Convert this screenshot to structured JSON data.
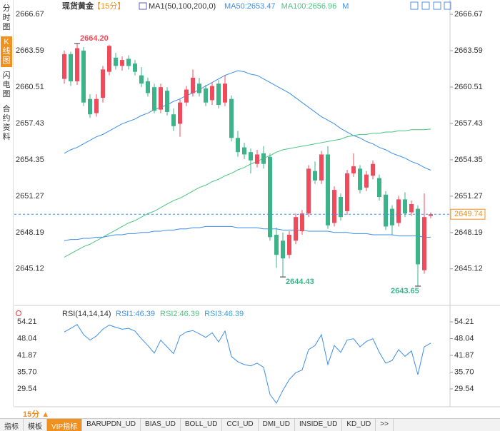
{
  "sidebar": {
    "tabs": [
      "分时图",
      "K线图",
      "闪电图",
      "合约资料"
    ],
    "active": 1
  },
  "chart_data": [
    {
      "type": "candlestick",
      "title": "现货黄金",
      "period": "【15分】",
      "indicator": "MA1(50,100,200,0)",
      "up_color": "#f04b5c",
      "down_color": "#3db389",
      "open": [
        2661.2,
        2663.3,
        2661.0,
        2663.6,
        2659.5,
        2658.3,
        2659.6,
        2661.8,
        2663.0,
        2662.3,
        2662.9,
        2662.5,
        2661.5,
        2661.0,
        2660.5,
        2658.6,
        2660.2,
        2658.2,
        2657.4,
        2659.2,
        2660.0,
        2660.8,
        2660.4,
        2659.4,
        2660.8,
        2659.2,
        2659.5,
        2656.2,
        2655.4,
        2655.0,
        2654.0,
        2654.9,
        2654.6,
        2648.0,
        2647.5,
        2646.3,
        2647.5,
        2648.3,
        2649.8,
        2653.4,
        2652.6,
        2654.8,
        2649.0,
        2651.2,
        2650.0,
        2653.2,
        2653.6,
        2652.0,
        2653.0,
        2652.8,
        2651.4,
        2650.2,
        2649.0,
        2651.0,
        2649.9,
        2650.2,
        2645.0,
        2649.6
      ],
      "high": [
        2663.6,
        2663.5,
        2664.2,
        2663.9,
        2659.9,
        2659.9,
        2662.3,
        2664.1,
        2663.4,
        2663.1,
        2663.2,
        2662.8,
        2662.2,
        2661.3,
        2660.8,
        2660.8,
        2660.5,
        2658.7,
        2659.5,
        2660.6,
        2662.0,
        2661.3,
        2660.7,
        2660.9,
        2661.1,
        2661.5,
        2659.8,
        2656.8,
        2655.8,
        2655.3,
        2655.2,
        2655.5,
        2654.9,
        2648.6,
        2648.2,
        2648.3,
        2649.8,
        2650.1,
        2653.9,
        2654.2,
        2655.1,
        2655.5,
        2652.1,
        2651.5,
        2653.5,
        2654.9,
        2653.9,
        2653.4,
        2654.3,
        2653.1,
        2651.7,
        2650.5,
        2651.3,
        2651.6,
        2650.9,
        2650.5,
        2651.5,
        2649.9
      ],
      "low": [
        2660.8,
        2660.6,
        2660.7,
        2658.9,
        2657.9,
        2658.0,
        2659.2,
        2661.5,
        2662.0,
        2661.9,
        2662.0,
        2661.5,
        2660.5,
        2659.7,
        2658.3,
        2658.3,
        2658.1,
        2656.8,
        2656.3,
        2658.9,
        2659.7,
        2659.7,
        2658.9,
        2659.0,
        2658.7,
        2658.9,
        2655.9,
        2654.6,
        2654.4,
        2653.2,
        2653.7,
        2653.6,
        2647.5,
        2645.2,
        2644.43,
        2646.0,
        2647.2,
        2648.0,
        2649.5,
        2652.3,
        2652.3,
        2648.5,
        2648.7,
        2649.2,
        2649.7,
        2652.9,
        2651.5,
        2651.7,
        2652.7,
        2650.9,
        2648.4,
        2648.0,
        2648.7,
        2649.5,
        2649.6,
        2643.65,
        2644.7,
        2649.4
      ],
      "close": [
        2663.3,
        2661.0,
        2663.8,
        2659.2,
        2658.2,
        2659.5,
        2662.0,
        2664.0,
        2662.3,
        2662.8,
        2662.3,
        2661.8,
        2660.8,
        2660.0,
        2658.5,
        2660.5,
        2658.4,
        2657.2,
        2659.2,
        2660.3,
        2661.3,
        2660.0,
        2659.2,
        2660.6,
        2659.0,
        2660.8,
        2656.2,
        2655.0,
        2654.8,
        2654.3,
        2654.8,
        2654.0,
        2647.8,
        2646.3,
        2646.0,
        2648.0,
        2649.5,
        2649.8,
        2653.6,
        2652.6,
        2654.8,
        2648.8,
        2651.8,
        2649.5,
        2653.2,
        2653.8,
        2651.8,
        2653.1,
        2654.0,
        2651.2,
        2648.7,
        2648.8,
        2651.0,
        2649.8,
        2650.6,
        2645.5,
        2649.5,
        2649.74
      ],
      "series": [
        {
          "name": "MA50:2653.47",
          "color": "#3d8fe6",
          "values": [
            2654.9,
            2655.2,
            2655.4,
            2655.7,
            2656.0,
            2656.3,
            2656.5,
            2656.8,
            2657.1,
            2657.4,
            2657.6,
            2657.8,
            2658.1,
            2658.3,
            2658.6,
            2658.8,
            2659.0,
            2659.3,
            2659.5,
            2659.8,
            2660.0,
            2660.3,
            2660.6,
            2660.9,
            2661.2,
            2661.5,
            2661.7,
            2661.9,
            2661.8,
            2661.6,
            2661.5,
            2661.2,
            2660.9,
            2660.6,
            2660.3,
            2660.0,
            2659.6,
            2659.2,
            2658.8,
            2658.4,
            2658.0,
            2657.7,
            2657.4,
            2657.0,
            2656.7,
            2656.4,
            2656.2,
            2655.9,
            2655.7,
            2655.4,
            2655.2,
            2654.9,
            2654.7,
            2654.5,
            2654.2,
            2654.0,
            2653.7,
            2653.47
          ]
        },
        {
          "name": "MA100:2656.96",
          "color": "#4cc47f",
          "values": [
            2646.1,
            2646.4,
            2646.7,
            2647.0,
            2647.2,
            2647.5,
            2647.8,
            2648.1,
            2648.4,
            2648.7,
            2649.0,
            2649.2,
            2649.5,
            2649.8,
            2650.0,
            2650.3,
            2650.6,
            2650.9,
            2651.1,
            2651.4,
            2651.7,
            2652.0,
            2652.2,
            2652.5,
            2652.7,
            2653.0,
            2653.2,
            2653.5,
            2653.7,
            2654.0,
            2654.2,
            2654.5,
            2654.7,
            2655.0,
            2655.2,
            2655.3,
            2655.4,
            2655.5,
            2655.6,
            2655.7,
            2655.8,
            2655.9,
            2656.0,
            2656.1,
            2656.3,
            2656.4,
            2656.5,
            2656.5,
            2656.6,
            2656.6,
            2656.7,
            2656.7,
            2656.8,
            2656.8,
            2656.9,
            2656.9,
            2656.9,
            2656.96
          ]
        },
        {
          "name": "M",
          "color": "#3d8fe6",
          "values": [
            2647.5,
            2647.6,
            2647.6,
            2647.7,
            2647.7,
            2647.8,
            2647.8,
            2647.9,
            2648.0,
            2648.0,
            2648.1,
            2648.1,
            2648.2,
            2648.2,
            2648.3,
            2648.3,
            2648.4,
            2648.4,
            2648.5,
            2648.5,
            2648.6,
            2648.6,
            2648.7,
            2648.7,
            2648.7,
            2648.7,
            2648.7,
            2648.6,
            2648.6,
            2648.6,
            2648.6,
            2648.5,
            2648.5,
            2648.5,
            2648.4,
            2648.4,
            2648.4,
            2648.4,
            2648.3,
            2648.3,
            2648.3,
            2648.3,
            2648.2,
            2648.2,
            2648.2,
            2648.1,
            2648.1,
            2648.1,
            2648.0,
            2648.0,
            2648.0,
            2648.0,
            2647.9,
            2647.9,
            2647.9,
            2647.9,
            2647.8,
            2647.8
          ]
        }
      ],
      "ylim": [
        2642.2,
        2667.58
      ],
      "yticks": [
        2666.67,
        2663.59,
        2660.51,
        2657.43,
        2654.35,
        2651.27,
        2648.19,
        2645.12
      ],
      "last_price": 2649.74,
      "last_color": "#f0901e",
      "annotations": [
        {
          "kind": "high",
          "value": 2664.2,
          "label": "2664.20"
        },
        {
          "kind": "low",
          "value": 2644.43,
          "label": "2644.43"
        },
        {
          "kind": "low",
          "value": 2643.65,
          "label": "2643.65"
        }
      ]
    },
    {
      "type": "line",
      "title": "RSI(14,14,14)",
      "legend": [
        {
          "name": "RSI1:46.39",
          "color": "#3d8fe6"
        },
        {
          "name": "RSI2:46.39",
          "color": "#4cc47f"
        },
        {
          "name": "RSI3:46.39",
          "color": "#36a3d9"
        }
      ],
      "values": [
        50.5,
        51.8,
        53.2,
        49.5,
        47.5,
        49.0,
        51.5,
        53.0,
        52.2,
        51.5,
        51.8,
        50.8,
        48.0,
        45.5,
        42.7,
        47.5,
        45.0,
        42.5,
        49.0,
        50.5,
        51.0,
        49.8,
        48.5,
        50.2,
        46.8,
        50.8,
        41.5,
        39.5,
        38.5,
        38.0,
        39.0,
        37.5,
        27.5,
        24.3,
        29.0,
        33.0,
        35.5,
        36.5,
        44.0,
        45.5,
        49.5,
        38.5,
        45.5,
        43.0,
        47.5,
        48.0,
        45.0,
        47.0,
        48.0,
        43.0,
        39.0,
        40.0,
        44.0,
        41.5,
        43.5,
        34.8,
        45.0,
        46.39
      ],
      "color": "#3d8fe6",
      "ylim": [
        22.98,
        56.31
      ],
      "yticks": [
        54.21,
        48.04,
        41.87,
        {
          "value": 35.7,
          "label": "35.70"
        },
        29.54
      ]
    }
  ],
  "footer": {
    "period": "15分 ▲",
    "tabs": [
      "指标",
      "模板",
      "VIP指标",
      "BARUPDN_UD",
      "BIAS_UD",
      "BOLL_UD",
      "CCI_UD",
      "DMI_UD",
      "INSIDE_UD",
      "KD_UD",
      ">>"
    ],
    "active": 2
  }
}
